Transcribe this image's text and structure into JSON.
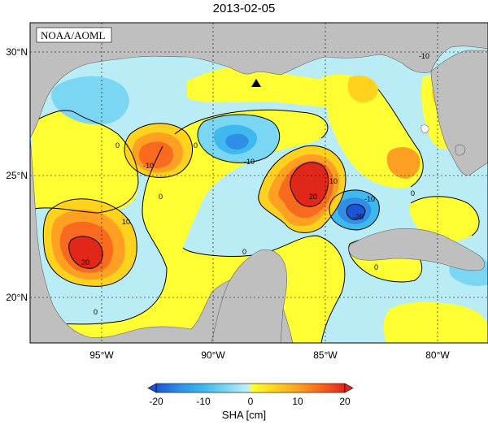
{
  "title": "2013-02-05",
  "credit": "NOAA/AOML",
  "axes": {
    "x_ticks": [
      "95°W",
      "90°W",
      "85°W",
      "80°W"
    ],
    "y_ticks": [
      "30°N",
      "25°N",
      "20°N"
    ]
  },
  "colorbar": {
    "label": "SHA [cm]",
    "ticks": [
      "-20",
      "-10",
      "0",
      "10",
      "20"
    ],
    "range": [
      -20,
      20
    ],
    "colors": [
      "#1d54d6",
      "#2f8ee6",
      "#3eb8ee",
      "#7ad6f2",
      "#b7ecf6",
      "#ffff33",
      "#ffd21e",
      "#ffa022",
      "#f86a1e",
      "#e1261a"
    ]
  },
  "colors": {
    "land": "#bfbfbf",
    "ocean_base": "#b9ecf5",
    "positive_weak": "#ffff33",
    "positive_strong": "#e1261a",
    "negative_strong": "#1d54d6"
  },
  "contour_labels": [
    "0",
    "0",
    "0",
    "0",
    "0",
    "0",
    "0",
    "10",
    "10",
    "20",
    "20",
    "-10",
    "-10",
    "-10",
    "-10",
    "-20"
  ],
  "marker": "station-marker-triangle",
  "chart_data": {
    "type": "heatmap",
    "title": "2013-02-05",
    "variable": "SHA [cm]",
    "color_range": [
      -20,
      20
    ],
    "x_ticks_deg": [
      -95,
      -90,
      -85,
      -80
    ],
    "y_ticks_deg": [
      30,
      25,
      20
    ],
    "features": [
      {
        "kind": "warm eddy",
        "lon": -86.0,
        "lat": 25.0,
        "peak_cm": 25
      },
      {
        "kind": "warm eddy",
        "lon": -95.3,
        "lat": 21.8,
        "peak_cm": 22
      },
      {
        "kind": "warm eddy",
        "lon": -93.0,
        "lat": 26.1,
        "peak_cm": 15
      },
      {
        "kind": "cold eddy",
        "lon": -84.2,
        "lat": 23.5,
        "peak_cm": -22
      },
      {
        "kind": "cold eddy",
        "lon": -89.4,
        "lat": 26.3,
        "peak_cm": -12
      }
    ]
  }
}
